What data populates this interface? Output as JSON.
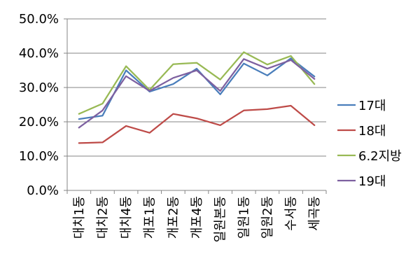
{
  "chart_data": {
    "type": "line",
    "title": "",
    "xlabel": "",
    "ylabel": "",
    "ylim": [
      0,
      50
    ],
    "y_ticks": [
      "0.0%",
      "10.0%",
      "20.0%",
      "30.0%",
      "40.0%",
      "50.0%"
    ],
    "y_tick_values": [
      0,
      10,
      20,
      30,
      40,
      50
    ],
    "grid": true,
    "legend_position": "right",
    "categories": [
      "대치1동",
      "대치2동",
      "대치4동",
      "개포1동",
      "개포2동",
      "개포4동",
      "일원본동",
      "일원1동",
      "일원2동",
      "수서동",
      "세곡동"
    ],
    "series": [
      {
        "name": "17대",
        "color": "#4a7ebb",
        "values": [
          20.8,
          21.8,
          35.0,
          28.8,
          31.0,
          35.5,
          28.0,
          37.0,
          33.5,
          38.5,
          33.2
        ]
      },
      {
        "name": "18대",
        "color": "#be4b48",
        "values": [
          13.8,
          14.0,
          18.8,
          16.8,
          22.3,
          21.0,
          19.0,
          23.3,
          23.7,
          24.7,
          19.0
        ]
      },
      {
        "name": "6.2지방",
        "color": "#98b954",
        "values": [
          22.3,
          25.3,
          36.2,
          29.3,
          36.8,
          37.2,
          32.3,
          40.3,
          36.7,
          39.2,
          31.0
        ]
      },
      {
        "name": "19대",
        "color": "#7d60a0",
        "values": [
          18.3,
          23.3,
          33.3,
          29.0,
          32.8,
          35.0,
          29.0,
          38.3,
          35.5,
          38.0,
          32.5
        ]
      }
    ]
  }
}
